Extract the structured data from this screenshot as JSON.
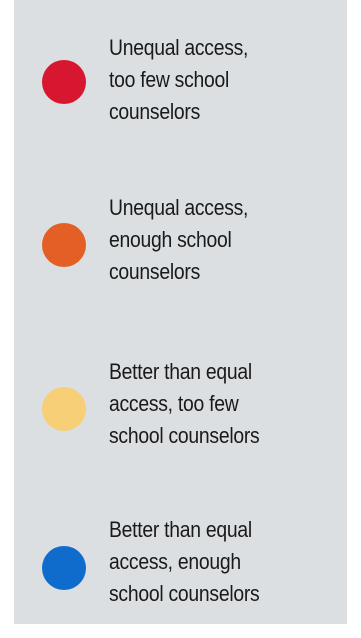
{
  "legend": {
    "items": [
      {
        "lines": [
          "Unequal access,",
          "too few school",
          "counselors"
        ],
        "color": "#d6172f"
      },
      {
        "lines": [
          "Unequal access,",
          "enough school",
          "counselors"
        ],
        "color": "#e35f26"
      },
      {
        "lines": [
          "Better than equal",
          "access, too few",
          "school counselors"
        ],
        "color": "#f6cf76"
      },
      {
        "lines": [
          "Better than equal",
          "access, enough",
          "school counselors"
        ],
        "color": "#0f6ccd"
      }
    ]
  }
}
